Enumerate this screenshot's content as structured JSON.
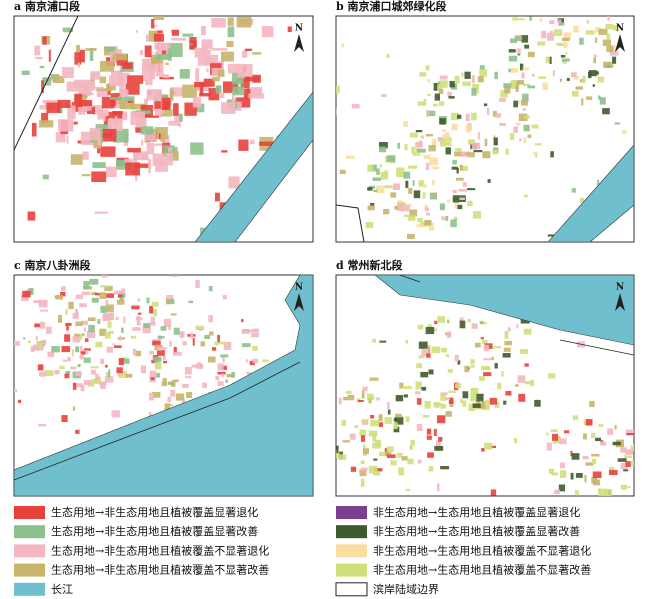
{
  "panels": [
    {
      "title": "a 南京浦口段"
    },
    {
      "title": "b 南京浦口城郊绿化段"
    },
    {
      "title": "c 南京八卦洲段"
    },
    {
      "title": "d 常州新北段"
    }
  ],
  "north_label": "N",
  "legend": [
    {
      "label": "生态用地→非生态用地且植被覆盖显著退化",
      "color": "#e8413c"
    },
    {
      "label": "非生态用地→生态用地且植被覆盖显著退化",
      "color": "#7a3f8f"
    },
    {
      "label": "生态用地→非生态用地且植被覆盖显著改善",
      "color": "#8cc08c"
    },
    {
      "label": "非生态用地→生态用地且植被覆盖显著改善",
      "color": "#3f5a2e"
    },
    {
      "label": "生态用地→非生态用地且植被覆盖不显著退化",
      "color": "#f4b6c0"
    },
    {
      "label": "非生态用地→生态用地且植被覆盖不显著退化",
      "color": "#f8dfa0"
    },
    {
      "label": "生态用地→非生态用地且植被覆盖不显著改善",
      "color": "#c8b46a"
    },
    {
      "label": "非生态用地→生态用地且植被覆盖不显著改善",
      "color": "#cfe07a"
    },
    {
      "label": "长江",
      "color": "#6fbfcf"
    },
    {
      "label": "滨岸陆域边界",
      "color": "#ffffff"
    }
  ]
}
